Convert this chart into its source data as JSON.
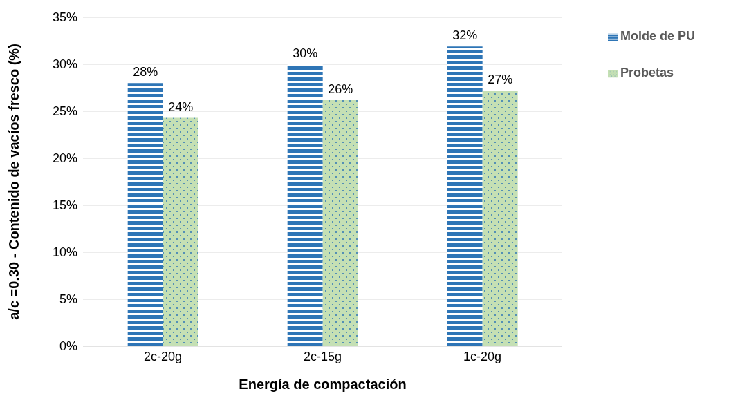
{
  "chart_data": {
    "type": "bar",
    "xlabel": "Energía de compactación",
    "ylabel": "a/c =0.30 - Contenido de vacíos fresco (%)",
    "categories": [
      "2c-20g",
      "2c-15g",
      "1c-20g"
    ],
    "series": [
      {
        "name": "Molde de PU",
        "color": "#2e75b6",
        "values": [
          28,
          30,
          31.9
        ],
        "value_labels": [
          "28%",
          "30%",
          "32%"
        ]
      },
      {
        "name": "Probetas",
        "color": "#c5e0b4",
        "values": [
          24.3,
          26.2,
          27.2
        ],
        "value_labels": [
          "24%",
          "26%",
          "27%"
        ]
      }
    ],
    "ylim": [
      0,
      35
    ],
    "yticks": [
      {
        "value": 0,
        "label": "0%"
      },
      {
        "value": 5,
        "label": "5%"
      },
      {
        "value": 10,
        "label": "10%"
      },
      {
        "value": 15,
        "label": "15%"
      },
      {
        "value": 20,
        "label": "20%"
      },
      {
        "value": 25,
        "label": "25%"
      },
      {
        "value": 30,
        "label": "30%"
      },
      {
        "value": 35,
        "label": "35%"
      }
    ],
    "grid": "y",
    "legend": "top right"
  }
}
